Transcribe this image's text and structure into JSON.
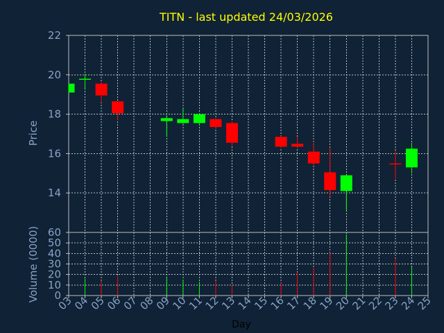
{
  "chart_data": {
    "type": "candlestick",
    "title": "TITN - last updated 24/03/2026",
    "xlabel": "Day",
    "price_panel": {
      "ylabel": "Price",
      "ylim": [
        12,
        22
      ],
      "yticks": [
        14,
        16,
        18,
        20,
        22
      ],
      "grid": true
    },
    "volume_panel": {
      "ylabel": "Volume (0000)",
      "ylim": [
        0,
        60
      ],
      "yticks": [
        0,
        10,
        20,
        30,
        40,
        50,
        60
      ],
      "grid": true
    },
    "x_ticks": [
      "03",
      "04",
      "05",
      "06",
      "07",
      "08",
      "09",
      "10",
      "11",
      "12",
      "13",
      "14",
      "15",
      "16",
      "17",
      "18",
      "19",
      "20",
      "21",
      "22",
      "23",
      "24",
      "25"
    ],
    "colors": {
      "up": "#00ff00",
      "down": "#ff0000",
      "grid": "#c0c0c0",
      "axis": "#8aa3c4",
      "background": "#0f2236",
      "plot_bg": "#0f2236"
    },
    "candles": [
      {
        "day": "03",
        "open": 19.1,
        "close": 19.55,
        "high": 19.55,
        "low": 19.1,
        "volume": 0
      },
      {
        "day": "04",
        "open": 19.75,
        "close": 19.8,
        "high": 20.05,
        "low": 19.3,
        "volume": 16
      },
      {
        "day": "05",
        "open": 19.55,
        "close": 18.95,
        "high": 19.65,
        "low": 18.6,
        "volume": 14
      },
      {
        "day": "06",
        "open": 18.65,
        "close": 18.05,
        "high": 18.7,
        "low": 17.7,
        "volume": 18
      },
      {
        "day": "09",
        "open": 17.65,
        "close": 17.8,
        "high": 17.95,
        "low": 16.85,
        "volume": 18
      },
      {
        "day": "10",
        "open": 17.55,
        "close": 17.75,
        "high": 18.3,
        "low": 17.5,
        "volume": 15
      },
      {
        "day": "11",
        "open": 17.55,
        "close": 18.0,
        "high": 18.05,
        "low": 17.45,
        "volume": 13
      },
      {
        "day": "12",
        "open": 17.75,
        "close": 17.35,
        "high": 17.8,
        "low": 17.3,
        "volume": 14
      },
      {
        "day": "13",
        "open": 17.55,
        "close": 16.55,
        "high": 17.65,
        "low": 16.4,
        "volume": 10
      },
      {
        "day": "16",
        "open": 16.85,
        "close": 16.35,
        "high": 16.9,
        "low": 16.3,
        "volume": 12
      },
      {
        "day": "17",
        "open": 16.5,
        "close": 16.35,
        "high": 16.85,
        "low": 16.3,
        "volume": 22
      },
      {
        "day": "18",
        "open": 16.1,
        "close": 15.5,
        "high": 16.6,
        "low": 15.4,
        "volume": 26
      },
      {
        "day": "19",
        "open": 15.05,
        "close": 14.15,
        "high": 16.3,
        "low": 13.8,
        "volume": 41
      },
      {
        "day": "20",
        "open": 14.1,
        "close": 14.9,
        "high": 14.9,
        "low": 13.1,
        "volume": 58
      },
      {
        "day": "23",
        "open": 15.5,
        "close": 15.45,
        "high": 16.15,
        "low": 14.7,
        "volume": 35
      },
      {
        "day": "24",
        "open": 15.3,
        "close": 16.25,
        "high": 16.55,
        "low": 15.0,
        "volume": 27
      }
    ]
  }
}
